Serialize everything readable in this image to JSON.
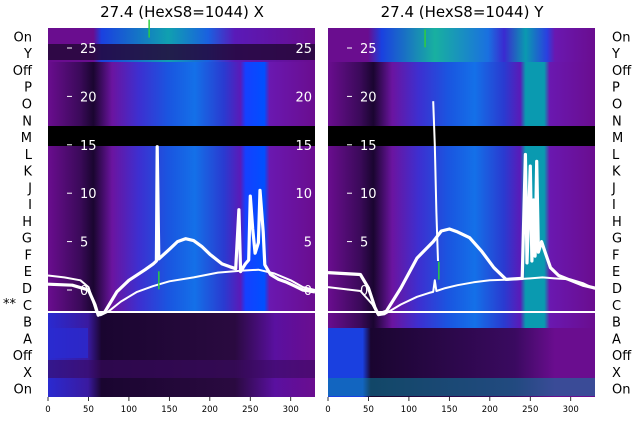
{
  "chart_data": [
    {
      "type": "heatmap",
      "title": "27.4 (HexS8=1044) X",
      "row_labels_top_to_bottom": [
        "On",
        "Y",
        "Off",
        "P",
        "O",
        "N",
        "M",
        "L",
        "K",
        "J",
        "I",
        "H",
        "G",
        "F",
        "E",
        "D",
        "C",
        "B",
        "A",
        "Off",
        "X",
        "On"
      ],
      "marker": "**",
      "marked_row": "C",
      "xlim": [
        0,
        330
      ],
      "x_ticks": [
        "0",
        "50",
        "100",
        "150",
        "200",
        "250",
        "300"
      ],
      "overlay_ylim": [
        -5,
        27.5
      ],
      "overlay_y_ticks": [
        "0",
        "5",
        "10",
        "15",
        "20",
        "25"
      ],
      "series": [
        {
          "color": "#ffffff",
          "points": [
            [
              0,
              1.5
            ],
            [
              20,
              1.3
            ],
            [
              40,
              1.0
            ],
            [
              50,
              0.3
            ],
            [
              55,
              -1.0
            ],
            [
              60,
              -2.3
            ],
            [
              65,
              -2.6
            ],
            [
              75,
              -2.2
            ],
            [
              90,
              -1.2
            ],
            [
              110,
              -0.2
            ],
            [
              130,
              0.4
            ],
            [
              150,
              0.9
            ],
            [
              180,
              1.3
            ],
            [
              210,
              1.8
            ],
            [
              240,
              2.0
            ],
            [
              260,
              2.1
            ],
            [
              280,
              1.7
            ],
            [
              300,
              1.0
            ],
            [
              315,
              0.3
            ],
            [
              330,
              0.0
            ]
          ]
        },
        {
          "color": "#ffffff",
          "points": [
            [
              0,
              0.6
            ],
            [
              30,
              0.5
            ],
            [
              50,
              0.0
            ],
            [
              58,
              -1.5
            ],
            [
              62,
              -2.6
            ],
            [
              70,
              -2.3
            ],
            [
              85,
              -0.2
            ],
            [
              100,
              1.0
            ],
            [
              120,
              2.1
            ],
            [
              130,
              2.7
            ],
            [
              134,
              3.0
            ],
            [
              135,
              14.8
            ],
            [
              137,
              3.2
            ],
            [
              150,
              4.2
            ],
            [
              160,
              5.0
            ],
            [
              170,
              5.3
            ],
            [
              180,
              5.1
            ],
            [
              190,
              4.5
            ],
            [
              200,
              3.7
            ],
            [
              215,
              2.7
            ],
            [
              225,
              2.4
            ],
            [
              232,
              2.2
            ],
            [
              236,
              8.3
            ],
            [
              238,
              1.9
            ],
            [
              244,
              2.7
            ],
            [
              248,
              3.1
            ],
            [
              250,
              9.7
            ],
            [
              253,
              6.3
            ],
            [
              256,
              3.8
            ],
            [
              260,
              4.9
            ],
            [
              262,
              10.3
            ],
            [
              266,
              6.0
            ],
            [
              268,
              2.6
            ],
            [
              275,
              1.6
            ],
            [
              285,
              1.1
            ],
            [
              295,
              0.8
            ],
            [
              305,
              0.4
            ],
            [
              315,
              0.0
            ],
            [
              330,
              -0.2
            ]
          ]
        }
      ],
      "green_markers": [
        [
          137,
          1
        ],
        [
          125,
          27
        ]
      ]
    },
    {
      "type": "heatmap",
      "title": "27.4 (HexS8=1044) Y",
      "row_labels_top_to_bottom": [
        "On",
        "Y",
        "Off",
        "P",
        "O",
        "N",
        "M",
        "L",
        "K",
        "J",
        "I",
        "H",
        "G",
        "F",
        "E",
        "D",
        "C",
        "B",
        "A",
        "Off",
        "X",
        "On"
      ],
      "xlim": [
        0,
        330
      ],
      "x_ticks": [
        "0",
        "50",
        "100",
        "150",
        "200",
        "250",
        "300"
      ],
      "overlay_ylim": [
        -5,
        27.5
      ],
      "overlay_y_ticks": [
        "0",
        "5",
        "10",
        "15",
        "20",
        "25"
      ],
      "series": [
        {
          "color": "#ffffff",
          "points": [
            [
              0,
              1.8
            ],
            [
              40,
              1.6
            ],
            [
              50,
              0.2
            ],
            [
              58,
              -1.8
            ],
            [
              62,
              -2.5
            ],
            [
              72,
              -2.2
            ],
            [
              90,
              0.2
            ],
            [
              110,
              3.3
            ],
            [
              130,
              5.0
            ],
            [
              140,
              6.1
            ],
            [
              150,
              6.3
            ],
            [
              160,
              6.0
            ],
            [
              175,
              5.4
            ],
            [
              190,
              4.0
            ],
            [
              205,
              2.3
            ],
            [
              220,
              1.1
            ],
            [
              240,
              1.2
            ],
            [
              244,
              14.0
            ],
            [
              246,
              2.8
            ],
            [
              250,
              12.8
            ],
            [
              252,
              3.0
            ],
            [
              254,
              9.3
            ],
            [
              256,
              3.5
            ],
            [
              258,
              13.3
            ],
            [
              260,
              3.9
            ],
            [
              264,
              5.0
            ],
            [
              268,
              4.0
            ],
            [
              275,
              2.3
            ],
            [
              285,
              1.5
            ],
            [
              300,
              1.0
            ],
            [
              315,
              0.5
            ],
            [
              330,
              0.2
            ]
          ]
        },
        {
          "color": "#ffffff",
          "points": [
            [
              0,
              0.3
            ],
            [
              40,
              -0.1
            ],
            [
              55,
              -1.5
            ],
            [
              62,
              -2.6
            ],
            [
              70,
              -2.5
            ],
            [
              90,
              -1.5
            ],
            [
              110,
              -0.7
            ],
            [
              125,
              -0.3
            ],
            [
              130,
              -0.2
            ],
            [
              132,
              1.0
            ],
            [
              134,
              -0.1
            ],
            [
              145,
              0.2
            ],
            [
              160,
              0.5
            ],
            [
              180,
              0.8
            ],
            [
              200,
              1.0
            ],
            [
              230,
              1.1
            ],
            [
              250,
              1.2
            ],
            [
              265,
              1.3
            ],
            [
              280,
              1.2
            ],
            [
              300,
              1.1
            ],
            [
              315,
              0.7
            ],
            [
              330,
              0.1
            ]
          ]
        },
        {
          "color": "#ffffff",
          "points": [
            [
              130,
              19.5
            ],
            [
              132,
              15.0
            ],
            [
              134,
              8.0
            ],
            [
              136,
              3.0
            ]
          ]
        }
      ],
      "green_markers": [
        [
          137,
          2
        ],
        [
          120,
          26
        ]
      ]
    }
  ]
}
